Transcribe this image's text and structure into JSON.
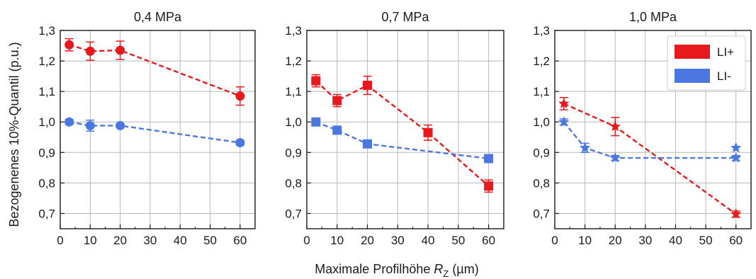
{
  "figure": {
    "ylabel": "Bezogenenes 10%-Quantil (p.u.)",
    "xlabel_text": "Maximale Profilhöhe ",
    "xlabel_var": "R",
    "xlabel_sub": "Z",
    "xlabel_unit": " (µm)"
  },
  "colors": {
    "LI+": "#e8191c",
    "LI-": "#4a78e0"
  },
  "legend": {
    "placement": "top-right of third panel",
    "entries": [
      "LI+",
      "LI-"
    ]
  },
  "chart_data": [
    {
      "type": "line",
      "title": "0,4 MPa",
      "marker": "circle",
      "xlim": [
        0,
        65
      ],
      "ylim": [
        0.65,
        1.3
      ],
      "xticks": [
        "0",
        "10",
        "20",
        "30",
        "40",
        "50",
        "60"
      ],
      "yticks": [
        "0,7",
        "0,8",
        "0,9",
        "1,0",
        "1,1",
        "1,2",
        "1,3"
      ],
      "grid": true,
      "series": [
        {
          "name": "LI+",
          "x": [
            3,
            10,
            20,
            60
          ],
          "y": [
            1.253,
            1.232,
            1.235,
            1.085
          ],
          "err": [
            0.02,
            0.03,
            0.03,
            0.03
          ]
        },
        {
          "name": "LI-",
          "x": [
            3,
            10,
            20,
            60
          ],
          "y": [
            1.0,
            0.988,
            0.988,
            0.932
          ],
          "err": [
            0.008,
            0.018,
            0.006,
            0.008
          ]
        }
      ]
    },
    {
      "type": "line",
      "title": "0,7 MPa",
      "marker": "square",
      "xlim": [
        0,
        65
      ],
      "ylim": [
        0.65,
        1.3
      ],
      "xticks": [
        "0",
        "10",
        "20",
        "30",
        "40",
        "50",
        "60"
      ],
      "yticks": [
        "0,7",
        "0,8",
        "0,9",
        "1,0",
        "1,1",
        "1,2",
        "1,3"
      ],
      "grid": true,
      "series": [
        {
          "name": "LI+",
          "x": [
            3,
            10,
            20,
            40,
            60
          ],
          "y": [
            1.135,
            1.07,
            1.12,
            0.965,
            0.79
          ],
          "err": [
            0.02,
            0.02,
            0.03,
            0.025,
            0.02
          ]
        },
        {
          "name": "LI-",
          "x": [
            3,
            10,
            20,
            60
          ],
          "y": [
            1.0,
            0.973,
            0.928,
            0.88
          ],
          "err": [
            0.008,
            0.01,
            0.006,
            0.008
          ]
        }
      ]
    },
    {
      "type": "line",
      "title": "1,0 MPa",
      "marker": "star",
      "xlim": [
        0,
        65
      ],
      "ylim": [
        0.65,
        1.3
      ],
      "xticks": [
        "0",
        "10",
        "20",
        "30",
        "40",
        "50",
        "60"
      ],
      "yticks": [
        "0,7",
        "0,8",
        "0,9",
        "1,0",
        "1,1",
        "1,2",
        "1,3"
      ],
      "grid": true,
      "series": [
        {
          "name": "LI+",
          "x": [
            3,
            20,
            60
          ],
          "y": [
            1.06,
            0.985,
            0.698
          ],
          "err": [
            0.02,
            0.03,
            0.01
          ]
        },
        {
          "name": "LI-",
          "x": [
            3,
            10,
            20,
            60
          ],
          "y": [
            1.0,
            0.915,
            0.882,
            0.882
          ],
          "err": [
            0.01,
            0.015,
            0.008,
            0.008
          ]
        },
        {
          "name": "LI-",
          "x": [
            60
          ],
          "y": [
            0.915
          ],
          "err": [
            0.0
          ],
          "marker_only": true
        }
      ]
    }
  ]
}
